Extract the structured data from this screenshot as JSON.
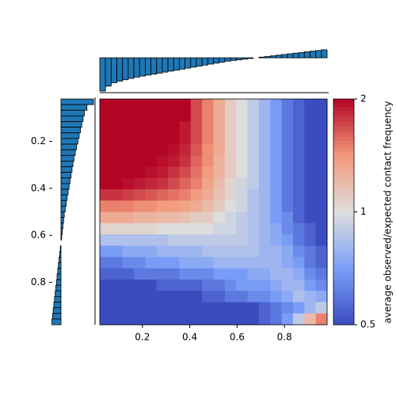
{
  "chart_data": {
    "type": "heatmap",
    "colorbar_label": "average observed/expected contact frequency",
    "colormap": "coolwarm",
    "color_scale": "log",
    "clim": [
      0.5,
      2
    ],
    "cticks": [
      0.5,
      1,
      2
    ],
    "xlim": [
      0.02,
      0.98
    ],
    "ylim": [
      0.02,
      0.98
    ],
    "xticks": [
      0.2,
      0.4,
      0.6,
      0.8
    ],
    "yticks": [
      0.2,
      0.4,
      0.6,
      0.8
    ],
    "z": [
      [
        2,
        2,
        2,
        2,
        2,
        2,
        2,
        2,
        1.7,
        1.5,
        1.3,
        1.1,
        1.0,
        0.9,
        0.8,
        0.7,
        0.6,
        0.55,
        0.5,
        0.5
      ],
      [
        2,
        2,
        2,
        2,
        2,
        2,
        2,
        2,
        1.7,
        1.5,
        1.3,
        1.1,
        1.0,
        0.9,
        0.8,
        0.7,
        0.6,
        0.55,
        0.5,
        0.5
      ],
      [
        2,
        2,
        2,
        2,
        2,
        2,
        2,
        1.9,
        1.7,
        1.5,
        1.3,
        1.1,
        1.0,
        0.9,
        0.8,
        0.7,
        0.6,
        0.55,
        0.5,
        0.5
      ],
      [
        2,
        2,
        2,
        2,
        2,
        2,
        2,
        1.9,
        1.7,
        1.5,
        1.3,
        1.1,
        1.0,
        0.9,
        0.8,
        0.7,
        0.6,
        0.55,
        0.5,
        0.5
      ],
      [
        2,
        2,
        2,
        2,
        2,
        2,
        1.95,
        1.85,
        1.65,
        1.45,
        1.3,
        1.1,
        1.0,
        0.9,
        0.8,
        0.7,
        0.6,
        0.55,
        0.5,
        0.5
      ],
      [
        2,
        2,
        2,
        2,
        2,
        1.95,
        1.9,
        1.8,
        1.6,
        1.45,
        1.25,
        1.1,
        1.0,
        0.9,
        0.8,
        0.7,
        0.6,
        0.55,
        0.5,
        0.5
      ],
      [
        2,
        2,
        2,
        2,
        1.95,
        1.9,
        1.8,
        1.7,
        1.55,
        1.4,
        1.25,
        1.1,
        1.0,
        0.9,
        0.8,
        0.7,
        0.6,
        0.55,
        0.5,
        0.5
      ],
      [
        2,
        2,
        1.95,
        1.9,
        1.85,
        1.8,
        1.7,
        1.6,
        1.5,
        1.35,
        1.2,
        1.05,
        0.95,
        0.9,
        0.8,
        0.7,
        0.6,
        0.55,
        0.5,
        0.5
      ],
      [
        1.8,
        1.8,
        1.75,
        1.7,
        1.65,
        1.6,
        1.55,
        1.5,
        1.4,
        1.3,
        1.15,
        1.05,
        0.95,
        0.85,
        0.8,
        0.7,
        0.6,
        0.55,
        0.5,
        0.5
      ],
      [
        1.5,
        1.5,
        1.5,
        1.45,
        1.45,
        1.4,
        1.4,
        1.35,
        1.3,
        1.2,
        1.1,
        1.0,
        0.95,
        0.85,
        0.8,
        0.7,
        0.6,
        0.55,
        0.5,
        0.5
      ],
      [
        1.3,
        1.3,
        1.3,
        1.25,
        1.25,
        1.2,
        1.2,
        1.15,
        1.1,
        1.1,
        1.0,
        0.95,
        0.9,
        0.85,
        0.8,
        0.7,
        0.65,
        0.55,
        0.5,
        0.5
      ],
      [
        1.05,
        1.05,
        1.05,
        1.05,
        1.05,
        1.0,
        1.0,
        1.0,
        1.0,
        1.0,
        0.95,
        0.95,
        0.9,
        0.85,
        0.8,
        0.75,
        0.65,
        0.6,
        0.55,
        0.5
      ],
      [
        0.85,
        0.85,
        0.85,
        0.85,
        0.85,
        0.85,
        0.9,
        0.9,
        0.9,
        0.9,
        0.9,
        0.9,
        0.9,
        0.85,
        0.8,
        0.75,
        0.7,
        0.6,
        0.55,
        0.5
      ],
      [
        0.7,
        0.7,
        0.75,
        0.75,
        0.75,
        0.8,
        0.8,
        0.8,
        0.8,
        0.85,
        0.85,
        0.85,
        0.85,
        0.85,
        0.8,
        0.8,
        0.75,
        0.65,
        0.6,
        0.55
      ],
      [
        0.6,
        0.6,
        0.65,
        0.65,
        0.7,
        0.7,
        0.7,
        0.75,
        0.75,
        0.75,
        0.8,
        0.8,
        0.8,
        0.8,
        0.8,
        0.8,
        0.75,
        0.7,
        0.6,
        0.55
      ],
      [
        0.55,
        0.55,
        0.55,
        0.6,
        0.6,
        0.6,
        0.6,
        0.65,
        0.65,
        0.65,
        0.7,
        0.7,
        0.7,
        0.75,
        0.75,
        0.8,
        0.8,
        0.75,
        0.65,
        0.6
      ],
      [
        0.5,
        0.5,
        0.5,
        0.5,
        0.5,
        0.55,
        0.55,
        0.55,
        0.55,
        0.6,
        0.6,
        0.65,
        0.7,
        0.7,
        0.7,
        0.75,
        0.8,
        0.8,
        0.7,
        0.65
      ],
      [
        0.5,
        0.5,
        0.5,
        0.5,
        0.5,
        0.5,
        0.5,
        0.5,
        0.5,
        0.55,
        0.55,
        0.6,
        0.6,
        0.65,
        0.65,
        0.7,
        0.75,
        0.85,
        0.8,
        0.75
      ],
      [
        0.5,
        0.5,
        0.5,
        0.5,
        0.5,
        0.5,
        0.5,
        0.5,
        0.5,
        0.5,
        0.5,
        0.5,
        0.5,
        0.5,
        0.55,
        0.6,
        0.65,
        0.7,
        0.8,
        0.9
      ],
      [
        0.5,
        0.5,
        0.5,
        0.5,
        0.5,
        0.5,
        0.5,
        0.5,
        0.5,
        0.5,
        0.5,
        0.5,
        0.5,
        0.5,
        0.55,
        0.6,
        0.7,
        0.9,
        1.2,
        1.5
      ]
    ],
    "marginal_color": "#1f77b4",
    "marginal_x": [
      -1.0,
      -0.85,
      -0.75,
      -0.7,
      -0.66,
      -0.62,
      -0.58,
      -0.55,
      -0.52,
      -0.49,
      -0.46,
      -0.43,
      -0.4,
      -0.37,
      -0.34,
      -0.31,
      -0.28,
      -0.25,
      -0.22,
      -0.19,
      -0.16,
      -0.13,
      -0.1,
      -0.08,
      -0.06,
      -0.04,
      -0.02,
      0.0,
      0.02,
      0.04,
      0.06,
      0.08,
      0.1,
      0.12,
      0.14,
      0.16,
      0.18,
      0.2,
      0.22,
      0.24
    ],
    "marginal_y": [
      -1.0,
      -0.8,
      -0.72,
      -0.68,
      -0.64,
      -0.6,
      -0.56,
      -0.52,
      -0.48,
      -0.44,
      -0.4,
      -0.37,
      -0.34,
      -0.31,
      -0.28,
      -0.25,
      -0.22,
      -0.19,
      -0.16,
      -0.13,
      -0.1,
      -0.08,
      -0.06,
      -0.04,
      -0.02,
      0.0,
      0.02,
      0.04,
      0.06,
      0.08,
      0.1,
      0.12,
      0.14,
      0.16,
      0.18,
      0.2,
      0.22,
      0.24,
      0.26,
      0.28
    ]
  }
}
